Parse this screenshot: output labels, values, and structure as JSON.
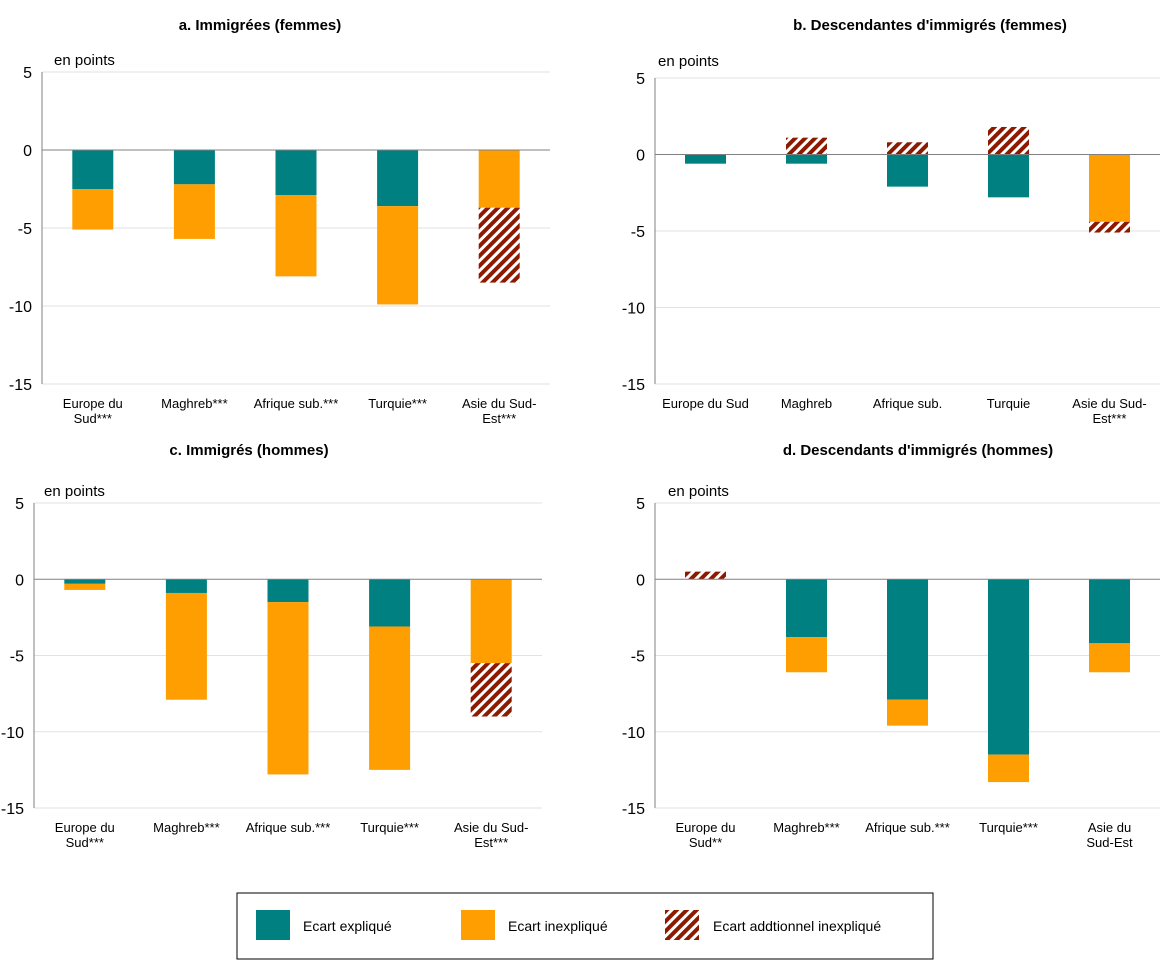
{
  "colors": {
    "explained": "#008080",
    "unexplained": "#FF9E00",
    "additional": "#8B1A00",
    "grid": "#E2E2E2",
    "axis": "#808080"
  },
  "legend": {
    "items": [
      {
        "key": "explained",
        "label": "Ecart expliqué"
      },
      {
        "key": "unexplained",
        "label": "Ecart inexpliqué"
      },
      {
        "key": "additional",
        "label": "Ecart addtionnel inexpliqué"
      }
    ]
  },
  "chart_data": [
    {
      "type": "bar",
      "stacked": true,
      "title": "a. Immigrées (femmes)",
      "unit_label": "en points",
      "ylim": [
        -15,
        5
      ],
      "yticks": [
        5,
        0,
        -5,
        -10,
        -15
      ],
      "categories": [
        [
          "Europe du",
          "Sud***"
        ],
        [
          "Maghreb***"
        ],
        [
          "Afrique sub.***"
        ],
        [
          "Turquie***"
        ],
        [
          "Asie du Sud-",
          "Est***"
        ]
      ],
      "series": [
        {
          "name": "Ecart expliqué",
          "key": "explained",
          "values": [
            -2.5,
            -2.2,
            -2.9,
            -3.6,
            0
          ]
        },
        {
          "name": "Ecart inexpliqué",
          "key": "unexplained",
          "values": [
            -2.6,
            -3.5,
            -5.2,
            -6.3,
            -3.7
          ]
        },
        {
          "name": "Ecart addtionnel inexpliqué",
          "key": "additional",
          "values": [
            0,
            0,
            0,
            0,
            -4.8
          ]
        }
      ]
    },
    {
      "type": "bar",
      "stacked": true,
      "title": "b. Descendantes d'immigrés (femmes)",
      "unit_label": "en points",
      "ylim": [
        -15,
        5
      ],
      "yticks": [
        5,
        0,
        -5,
        -10,
        -15
      ],
      "categories": [
        [
          "Europe du Sud"
        ],
        [
          "Maghreb"
        ],
        [
          "Afrique sub."
        ],
        [
          "Turquie"
        ],
        [
          "Asie du Sud-",
          "Est***"
        ]
      ],
      "series": [
        {
          "name": "Ecart expliqué",
          "key": "explained",
          "values": [
            -0.6,
            -0.6,
            -2.1,
            -2.8,
            0
          ]
        },
        {
          "name": "Ecart inexpliqué",
          "key": "unexplained",
          "values": [
            0,
            0,
            0,
            0,
            -4.4
          ]
        },
        {
          "name": "Ecart addtionnel inexpliqué",
          "key": "additional",
          "values": [
            0,
            1.1,
            0.8,
            1.8,
            -0.7
          ]
        }
      ]
    },
    {
      "type": "bar",
      "stacked": true,
      "title": "c. Immigrés (hommes)",
      "unit_label": "en points",
      "ylim": [
        -15,
        5
      ],
      "yticks": [
        5,
        0,
        -5,
        -10,
        -15
      ],
      "categories": [
        [
          "Europe du",
          "Sud***"
        ],
        [
          "Maghreb***"
        ],
        [
          "Afrique sub.***"
        ],
        [
          "Turquie***"
        ],
        [
          "Asie du Sud-",
          "Est***"
        ]
      ],
      "series": [
        {
          "name": "Ecart expliqué",
          "key": "explained",
          "values": [
            -0.3,
            -0.9,
            -1.5,
            -3.1,
            0
          ]
        },
        {
          "name": "Ecart inexpliqué",
          "key": "unexplained",
          "values": [
            -0.4,
            -7.0,
            -11.3,
            -9.4,
            -5.5
          ]
        },
        {
          "name": "Ecart addtionnel inexpliqué",
          "key": "additional",
          "values": [
            0,
            0,
            0,
            0,
            -3.5
          ]
        }
      ]
    },
    {
      "type": "bar",
      "stacked": true,
      "title": "d. Descendants d'immigrés (hommes)",
      "unit_label": "en points",
      "ylim": [
        -15,
        5
      ],
      "yticks": [
        5,
        0,
        -5,
        -10,
        -15
      ],
      "categories": [
        [
          "Europe du",
          "Sud**"
        ],
        [
          "Maghreb***"
        ],
        [
          "Afrique sub.***"
        ],
        [
          "Turquie***"
        ],
        [
          "Asie du",
          "Sud-Est"
        ]
      ],
      "series": [
        {
          "name": "Ecart expliqué",
          "key": "explained",
          "values": [
            0,
            -3.8,
            -7.9,
            -11.5,
            -4.2
          ]
        },
        {
          "name": "Ecart inexpliqué",
          "key": "unexplained",
          "values": [
            0,
            -2.3,
            -1.7,
            -1.8,
            -1.9
          ]
        },
        {
          "name": "Ecart addtionnel inexpliqué",
          "key": "additional",
          "values": [
            0.5,
            0,
            0,
            0,
            0
          ]
        }
      ]
    }
  ]
}
